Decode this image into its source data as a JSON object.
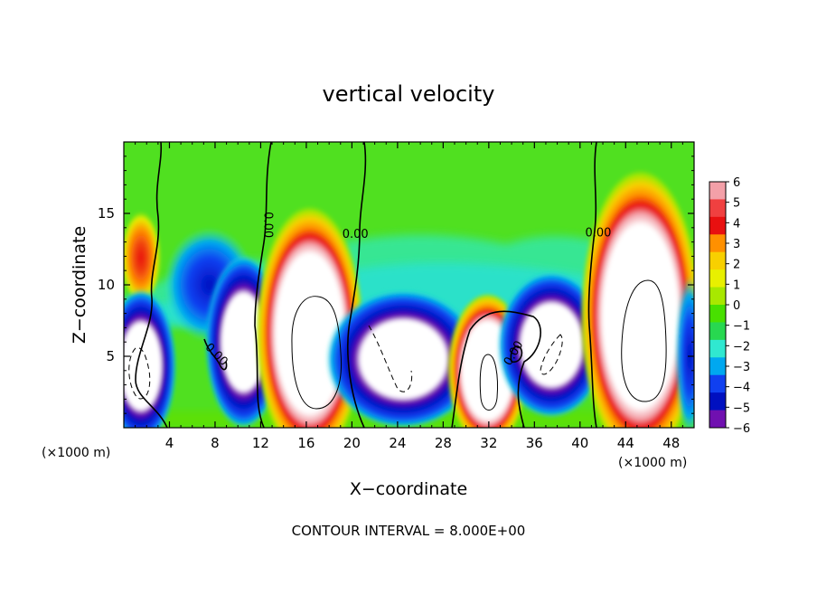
{
  "chart_data": {
    "type": "heatmap",
    "title": "vertical velocity",
    "xlabel": "X−coordinate",
    "ylabel": "Z−coordinate",
    "x_unit_left": "(×1000 m)",
    "x_unit_right": "(×1000 m)",
    "footer": "CONTOUR INTERVAL = 8.000E+00",
    "xlim": [
      0,
      50
    ],
    "ylim": [
      0,
      20
    ],
    "x_ticks": [
      4,
      8,
      12,
      16,
      20,
      24,
      28,
      32,
      36,
      40,
      44,
      48
    ],
    "x_tick_labels": [
      "4",
      "8",
      "12",
      "16",
      "20",
      "24",
      "28",
      "32",
      "36",
      "40",
      "44",
      "48"
    ],
    "y_ticks": [
      5,
      10,
      15
    ],
    "y_tick_labels": [
      "5",
      "10",
      "15"
    ],
    "colorbar": {
      "min": -6,
      "max": 6,
      "ticks": [
        6,
        5,
        4,
        3,
        2,
        1,
        0,
        -1,
        -2,
        -3,
        -4,
        -5,
        -6
      ],
      "tick_labels": [
        "6",
        "5",
        "4",
        "3",
        "2",
        "1",
        "0",
        "−1",
        "−2",
        "−3",
        "−4",
        "−5",
        "−6"
      ],
      "colors": [
        "#f3a0a8",
        "#f04040",
        "#e81010",
        "#ff9000",
        "#f8d000",
        "#e8f000",
        "#a8e800",
        "#48e000",
        "#28d850",
        "#30e8d0",
        "#00a8f0",
        "#1040f0",
        "#0010c0",
        "#7010b0"
      ]
    },
    "contour_labels": [
      {
        "text": "0.00",
        "x": 12.6,
        "y": 14.2,
        "rotation": 90
      },
      {
        "text": "0.00",
        "x": 20.3,
        "y": 13.5,
        "rotation": 0
      },
      {
        "text": "0.00",
        "x": 41.6,
        "y": 13.6,
        "rotation": 0
      },
      {
        "text": "0.00",
        "x": 8.1,
        "y": 5.1,
        "rotation": 45
      },
      {
        "text": "0.00",
        "x": 34.2,
        "y": 5.2,
        "rotation": -60
      }
    ],
    "cells": [
      {
        "x": 1.5,
        "y": 11.9,
        "rx": 1.4,
        "ry": 2.6,
        "value": 3.5
      },
      {
        "x": 1.5,
        "y": 4.3,
        "rx": 2.3,
        "ry": 4.0,
        "value": -6
      },
      {
        "x": 7.5,
        "y": 10.0,
        "rx": 3.2,
        "ry": 3.2,
        "value": -3
      },
      {
        "x": 10.5,
        "y": 6.0,
        "rx": 2.5,
        "ry": 4.5,
        "value": -5
      },
      {
        "x": 16.3,
        "y": 6.6,
        "rx": 3.5,
        "ry": 6.6,
        "value": 6
      },
      {
        "x": 24.5,
        "y": 4.8,
        "rx": 5.0,
        "ry": 3.6,
        "value": -6
      },
      {
        "x": 31.9,
        "y": 4.0,
        "rx": 2.6,
        "ry": 4.0,
        "value": 6
      },
      {
        "x": 37.5,
        "y": 5.8,
        "rx": 3.5,
        "ry": 3.8,
        "value": -6
      },
      {
        "x": 45.3,
        "y": 7.8,
        "rx": 3.9,
        "ry": 7.6,
        "value": 6
      },
      {
        "x": 49.6,
        "y": 5.0,
        "rx": 1.0,
        "ry": 4.5,
        "value": -4
      }
    ]
  }
}
